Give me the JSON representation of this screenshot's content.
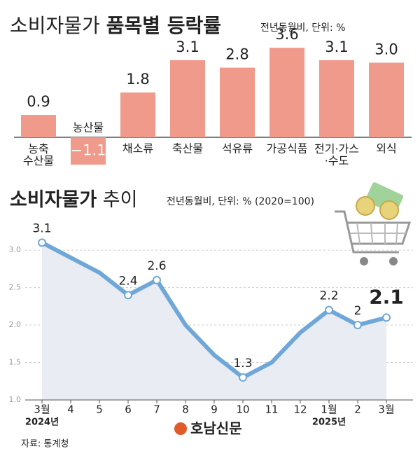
{
  "chart_data": [
    {
      "type": "bar",
      "title": "소비자물가",
      "title_emphasis": "품목별 등락률",
      "subtitle": "전년동월비, 단위: %",
      "categories": [
        "농축\n수산물",
        "농산물",
        "채소류",
        "축산물",
        "석유류",
        "가공식품",
        "전기·가스\n·수도",
        "외식"
      ],
      "values": [
        0.9,
        -1.1,
        1.8,
        3.1,
        2.8,
        3.6,
        3.1,
        3.0
      ],
      "value_labels": [
        "0.9",
        "−1.1",
        "1.8",
        "3.1",
        "2.8",
        "3.6",
        "3.1",
        "3.0"
      ],
      "color": "#f09a8c"
    },
    {
      "type": "line",
      "title": "소비자물가",
      "title_rest": "추이",
      "subtitle": "전년동월비, 단위: % (2020=100)",
      "categories": [
        "3월",
        "4",
        "5",
        "6",
        "7",
        "8",
        "9",
        "10",
        "11",
        "12",
        "1월",
        "2",
        "3월"
      ],
      "x_sublabels": [
        "2024년",
        null,
        null,
        null,
        null,
        null,
        null,
        null,
        null,
        null,
        "2025년",
        null,
        null
      ],
      "values": [
        3.1,
        2.9,
        2.7,
        2.4,
        2.6,
        2.0,
        1.6,
        1.3,
        1.5,
        1.9,
        2.2,
        2.0,
        2.1
      ],
      "value_labels": [
        "3.1",
        null,
        null,
        "2.4",
        "2.6",
        null,
        null,
        "1.3",
        null,
        null,
        "2.2",
        "2",
        "2.1"
      ],
      "ylim": [
        1.0,
        3.3
      ],
      "yticks": [
        {
          "value": 1.0,
          "label": "1.0"
        },
        {
          "value": 1.5,
          "label": "1.5"
        },
        {
          "value": 2.0,
          "label": "2.0"
        },
        {
          "value": 2.5,
          "label": "2.5"
        },
        {
          "value": 3.0,
          "label": "3.0"
        }
      ],
      "color": "#6fa8d8",
      "grid": true
    }
  ],
  "footer": {
    "source": "자료: 통계청",
    "logo": "호남신문"
  }
}
